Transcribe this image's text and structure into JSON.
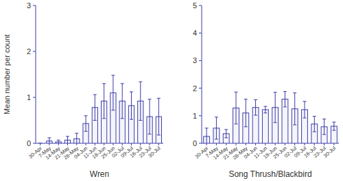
{
  "chart_data": [
    {
      "type": "bar",
      "x_label": "Wren",
      "y_label": "Mean number per count",
      "categories": [
        "30-Apr",
        "7-May",
        "14-May",
        "21-May",
        "28-May",
        "04-Jun",
        "11-Jun",
        "18-Jun",
        "25-Jun",
        "02-Jul",
        "09-Jul",
        "16-Jul",
        "23-Jul",
        "30-Jul"
      ],
      "values": [
        0,
        0.05,
        0.03,
        0.07,
        0.1,
        0.43,
        0.78,
        0.92,
        1.1,
        0.92,
        0.82,
        0.92,
        0.58,
        0.58
      ],
      "errors": [
        0,
        0.07,
        0.04,
        0.08,
        0.12,
        0.17,
        0.28,
        0.38,
        0.38,
        0.38,
        0.3,
        0.42,
        0.38,
        0.4
      ],
      "color": "#3a3aa8",
      "ylim": [
        0,
        3
      ],
      "yticks": [
        0,
        1,
        2,
        3
      ]
    },
    {
      "type": "bar",
      "x_label": "Song Thrush/Blackbird",
      "categories": [
        "30-Apr",
        "7-May",
        "14-May",
        "21-May",
        "28-May",
        "04-Jun",
        "11-Jun",
        "18-Jun",
        "25-Jun",
        "02-Jul",
        "09-Jul",
        "16-Jul",
        "23-Jul",
        "30-Jul"
      ],
      "values": [
        0.25,
        0.55,
        0.35,
        1.28,
        1.1,
        1.3,
        1.22,
        1.3,
        1.6,
        1.25,
        1.22,
        0.7,
        0.6,
        0.62
      ],
      "errors": [
        0.3,
        0.4,
        0.15,
        0.58,
        0.5,
        0.28,
        0.12,
        0.55,
        0.28,
        0.58,
        0.3,
        0.28,
        0.28,
        0.15
      ],
      "color": "#3a3aa8",
      "ylim": [
        0,
        5
      ],
      "yticks": [
        0,
        1,
        2,
        3,
        4,
        5
      ]
    }
  ]
}
